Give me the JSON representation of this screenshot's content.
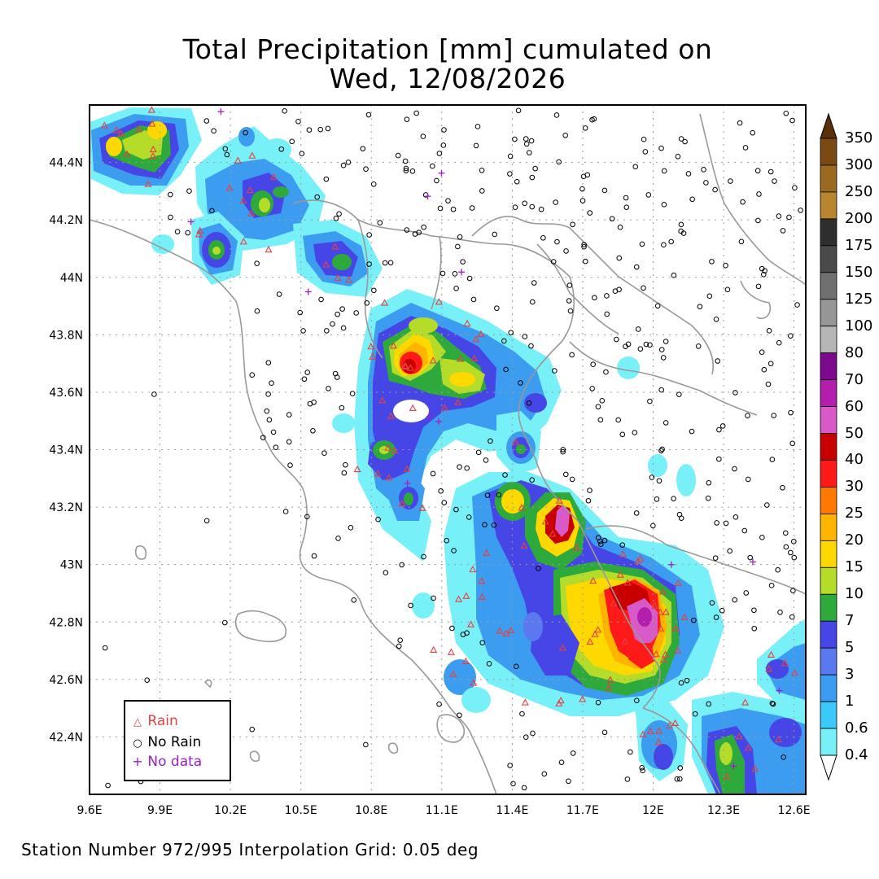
{
  "title": {
    "line1": "Total Precipitation [mm] cumulated on",
    "line2": "Wed, 12/08/2026"
  },
  "footer": "Station Number 972/995 Interpolation Grid: 0.05 deg",
  "axes": {
    "x_ticks": [
      "9.6E",
      "9.9E",
      "10.2E",
      "10.5E",
      "10.8E",
      "11.1E",
      "11.4E",
      "11.7E",
      "12E",
      "12.3E",
      "12.6E"
    ],
    "y_ticks": [
      "44.4N",
      "44.2N",
      "44N",
      "43.8N",
      "43.6N",
      "43.4N",
      "43.2N",
      "43N",
      "42.8N",
      "42.6N",
      "42.4N"
    ]
  },
  "legend": {
    "rain": "Rain",
    "no_rain": "No Rain",
    "no_data": "No data",
    "colors": {
      "rain": "#e84040",
      "no_rain": "#000000",
      "no_data": "#9a20c8"
    }
  },
  "colorbar": {
    "levels": [
      "350",
      "300",
      "250",
      "200",
      "175",
      "150",
      "125",
      "100",
      "80",
      "70",
      "60",
      "50",
      "40",
      "30",
      "25",
      "20",
      "15",
      "10",
      "7",
      "5",
      "3",
      "1",
      "0.6",
      "0.4"
    ],
    "colors": [
      "#5a3008",
      "#7a4a10",
      "#9a6a20",
      "#b8862e",
      "#2e2e2e",
      "#4a4a4a",
      "#707070",
      "#969696",
      "#b6b6b6",
      "#7c0a8c",
      "#b41eac",
      "#d85ac8",
      "#c80000",
      "#ff1a1a",
      "#ff7800",
      "#ffb400",
      "#ffd800",
      "#b4dc28",
      "#2eaa3c",
      "#4646e6",
      "#5a78f0",
      "#3c9cf0",
      "#3cc8f8",
      "#78f0f8",
      "#b0f8fc"
    ]
  },
  "chart_data": {
    "type": "heatmap",
    "variable": "Total Precipitation [mm]",
    "date": "Wed, 12/08/2026",
    "lon_range": [
      9.6,
      12.65
    ],
    "lat_range": [
      42.2,
      44.6
    ],
    "stations_used": 972,
    "stations_total": 995,
    "grid_resolution_deg": 0.05,
    "precip_cells": [
      {
        "lon": 9.72,
        "lat": 44.43,
        "mm": 12
      },
      {
        "lon": 9.88,
        "lat": 44.49,
        "mm": 15
      },
      {
        "lon": 9.98,
        "lat": 44.37,
        "mm": 12
      },
      {
        "lon": 10.15,
        "lat": 44.1,
        "mm": 12
      },
      {
        "lon": 10.34,
        "lat": 44.24,
        "mm": 12
      },
      {
        "lon": 10.43,
        "lat": 44.3,
        "mm": 8
      },
      {
        "lon": 10.61,
        "lat": 44.07,
        "mm": 8
      },
      {
        "lon": 10.95,
        "lat": 43.71,
        "mm": 55
      },
      {
        "lon": 11.05,
        "lat": 43.75,
        "mm": 25
      },
      {
        "lon": 11.12,
        "lat": 43.65,
        "mm": 20
      },
      {
        "lon": 10.87,
        "lat": 43.4,
        "mm": 12
      },
      {
        "lon": 10.98,
        "lat": 43.23,
        "mm": 10
      },
      {
        "lon": 11.45,
        "lat": 43.4,
        "mm": 8
      },
      {
        "lon": 11.41,
        "lat": 43.23,
        "mm": 25
      },
      {
        "lon": 11.65,
        "lat": 43.15,
        "mm": 65
      },
      {
        "lon": 11.77,
        "lat": 42.85,
        "mm": 25
      },
      {
        "lon": 11.92,
        "lat": 42.86,
        "mm": 55
      },
      {
        "lon": 11.98,
        "lat": 42.81,
        "mm": 75
      },
      {
        "lon": 11.97,
        "lat": 42.68,
        "mm": 50
      },
      {
        "lon": 11.63,
        "lat": 42.7,
        "mm": 6
      },
      {
        "lon": 12.33,
        "lat": 42.32,
        "mm": 12
      },
      {
        "lon": 12.58,
        "lat": 42.62,
        "mm": 5
      }
    ],
    "station_symbols": [
      "Rain",
      "No Rain",
      "No data"
    ]
  }
}
